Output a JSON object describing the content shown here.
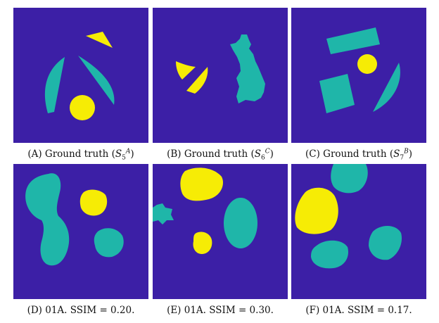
{
  "colors": {
    "background": "#3c1fa6",
    "teal": "#1fb6a9",
    "yellow": "#f6ec05"
  },
  "panels": [
    {
      "id": "A",
      "caption_prefix": "(A) Ground truth (",
      "symbol": "S",
      "sub": "5",
      "sup": "A",
      "caption_suffix": ")"
    },
    {
      "id": "B",
      "caption_prefix": "(B) Ground truth (",
      "symbol": "S",
      "sub": "6",
      "sup": "C",
      "caption_suffix": ")"
    },
    {
      "id": "C",
      "caption_prefix": "(C) Ground truth (",
      "symbol": "S",
      "sub": "7",
      "sup": "B",
      "caption_suffix": ")"
    },
    {
      "id": "D",
      "caption": "(D) 01A. SSIM = 0.20."
    },
    {
      "id": "E",
      "caption": "(E) 01A. SSIM = 0.30."
    },
    {
      "id": "F",
      "caption": "(F) 01A. SSIM = 0.17."
    }
  ]
}
